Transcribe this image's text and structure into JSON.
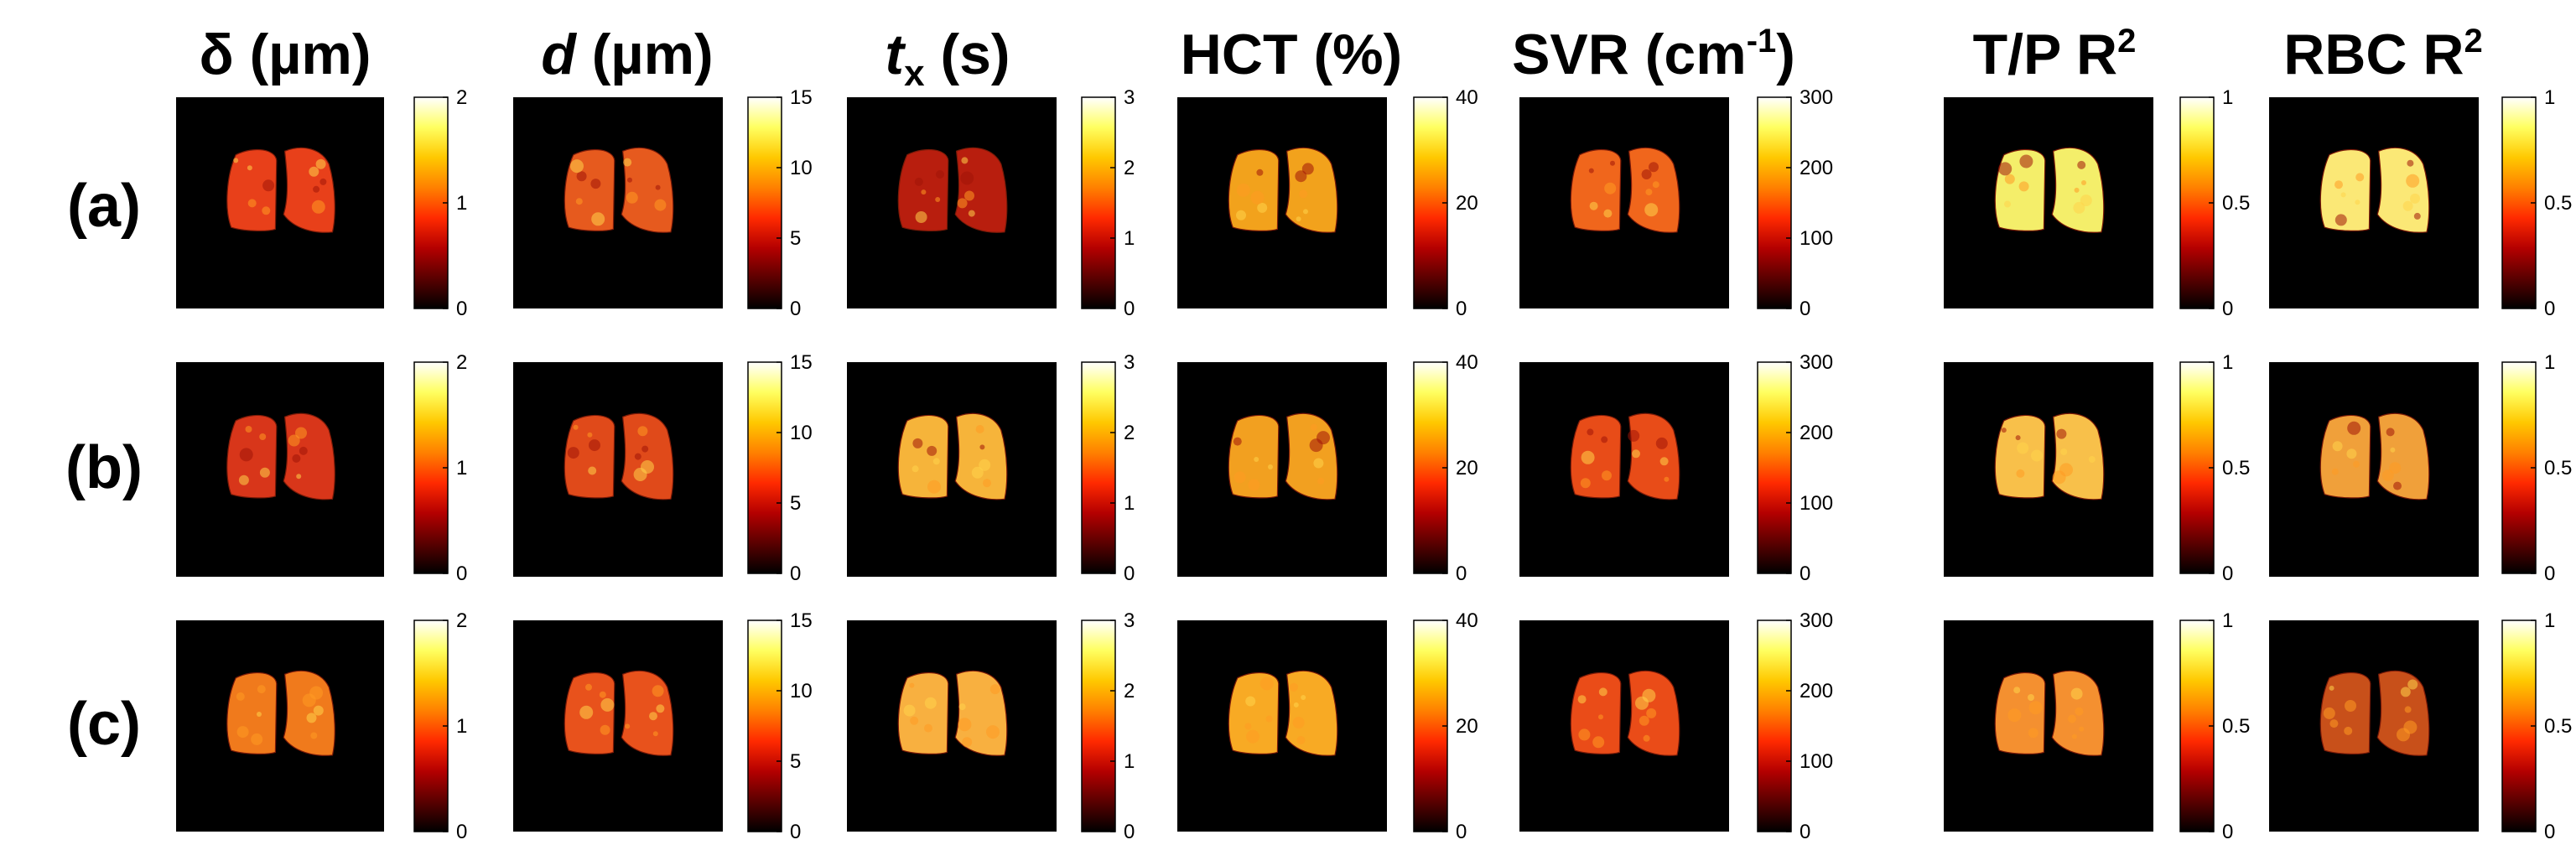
{
  "columns": [
    {
      "title_main": "δ",
      "title_italic": "",
      "title_sub": "",
      "title_rest": " (µm)",
      "title_sup": "",
      "title_tail": "",
      "ticks": [
        "0",
        "1",
        "2"
      ]
    },
    {
      "title_main": "",
      "title_italic": "d",
      "title_sub": "",
      "title_rest": " (µm)",
      "title_sup": "",
      "title_tail": "",
      "ticks": [
        "0",
        "5",
        "10",
        "15"
      ]
    },
    {
      "title_main": "",
      "title_italic": "t",
      "title_sub": "x",
      "title_rest": " (s)",
      "title_sup": "",
      "title_tail": "",
      "ticks": [
        "0",
        "1",
        "2",
        "3"
      ]
    },
    {
      "title_main": "HCT (%)",
      "title_italic": "",
      "title_sub": "",
      "title_rest": "",
      "title_sup": "",
      "title_tail": "",
      "ticks": [
        "0",
        "20",
        "40"
      ]
    },
    {
      "title_main": "SVR (cm",
      "title_italic": "",
      "title_sub": "",
      "title_rest": "",
      "title_sup": "-1",
      "title_tail": ")",
      "ticks": [
        "0",
        "100",
        "200",
        "300"
      ]
    },
    {
      "title_main": "T/P R",
      "title_italic": "",
      "title_sub": "",
      "title_rest": "",
      "title_sup": "2",
      "title_tail": "",
      "ticks": [
        "0",
        "0.5",
        "1"
      ]
    },
    {
      "title_main": "RBC R",
      "title_italic": "",
      "title_sub": "",
      "title_rest": "",
      "title_sup": "2",
      "title_tail": "",
      "ticks": [
        "0",
        "0.5",
        "1"
      ]
    }
  ],
  "rows": [
    {
      "label": "(a)"
    },
    {
      "label": "(b)"
    },
    {
      "label": "(c)"
    }
  ],
  "colors": {
    "image_background": "#000000",
    "colormap": [
      "#000000",
      "#5a0000",
      "#b40000",
      "#ff2a00",
      "#ff8000",
      "#ffc800",
      "#ffff60",
      "#ffffff"
    ]
  },
  "panels": [
    [
      "#e8401a",
      "#e65a1e",
      "#b81e0e",
      "#f2a21c",
      "#f0661c",
      "#f4ee6a",
      "#fbe876"
    ],
    [
      "#d8361a",
      "#e04a1a",
      "#f6b43a",
      "#f2a020",
      "#e84c18",
      "#f8c04a",
      "#f0a03a"
    ],
    [
      "#f07a1c",
      "#e8521c",
      "#f8b040",
      "#f8aa24",
      "#ea4c18",
      "#f49030",
      "#c8501a"
    ]
  ]
}
